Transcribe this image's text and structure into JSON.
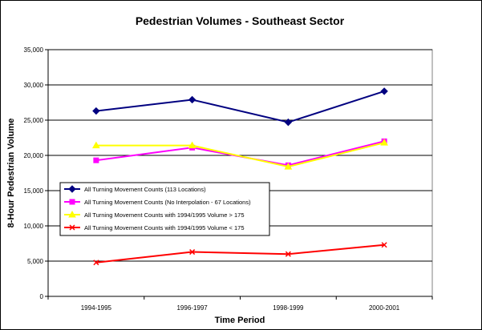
{
  "chart_data": {
    "type": "line",
    "title": "Pedestrian Volumes - Southeast Sector",
    "xlabel": "Time Period",
    "ylabel": "8-Hour Pedestrian Volume",
    "categories": [
      "1994-1995",
      "1996-1997",
      "1998-1999",
      "2000-2001"
    ],
    "ylim": [
      0,
      35000
    ],
    "yticks": [
      0,
      5000,
      10000,
      15000,
      20000,
      25000,
      30000,
      35000
    ],
    "ytick_labels": [
      "0",
      "5,000",
      "10,000",
      "15,000",
      "20,000",
      "25,000",
      "30,000",
      "35,000"
    ],
    "grid": "horizontal",
    "legend_position": "left-center",
    "series": [
      {
        "name": "All Turning Movement Counts (113 Locations)",
        "color": "#000080",
        "marker": "diamond",
        "values": [
          26300,
          27900,
          24700,
          29100
        ]
      },
      {
        "name": "All Turning Movement Counts (No Interpolation - 67 Locations)",
        "color": "#ff00ff",
        "marker": "square",
        "values": [
          19300,
          21100,
          18600,
          22000
        ]
      },
      {
        "name": "All Turning Movement Counts with 1994/1995 Volume > 175",
        "color": "#ffff00",
        "marker": "triangle",
        "values": [
          21400,
          21400,
          18400,
          21800
        ]
      },
      {
        "name": "All Turning Movement Counts with 1994/1995 Volume < 175",
        "color": "#ff0000",
        "marker": "x",
        "values": [
          4800,
          6300,
          6000,
          7300
        ]
      }
    ]
  }
}
